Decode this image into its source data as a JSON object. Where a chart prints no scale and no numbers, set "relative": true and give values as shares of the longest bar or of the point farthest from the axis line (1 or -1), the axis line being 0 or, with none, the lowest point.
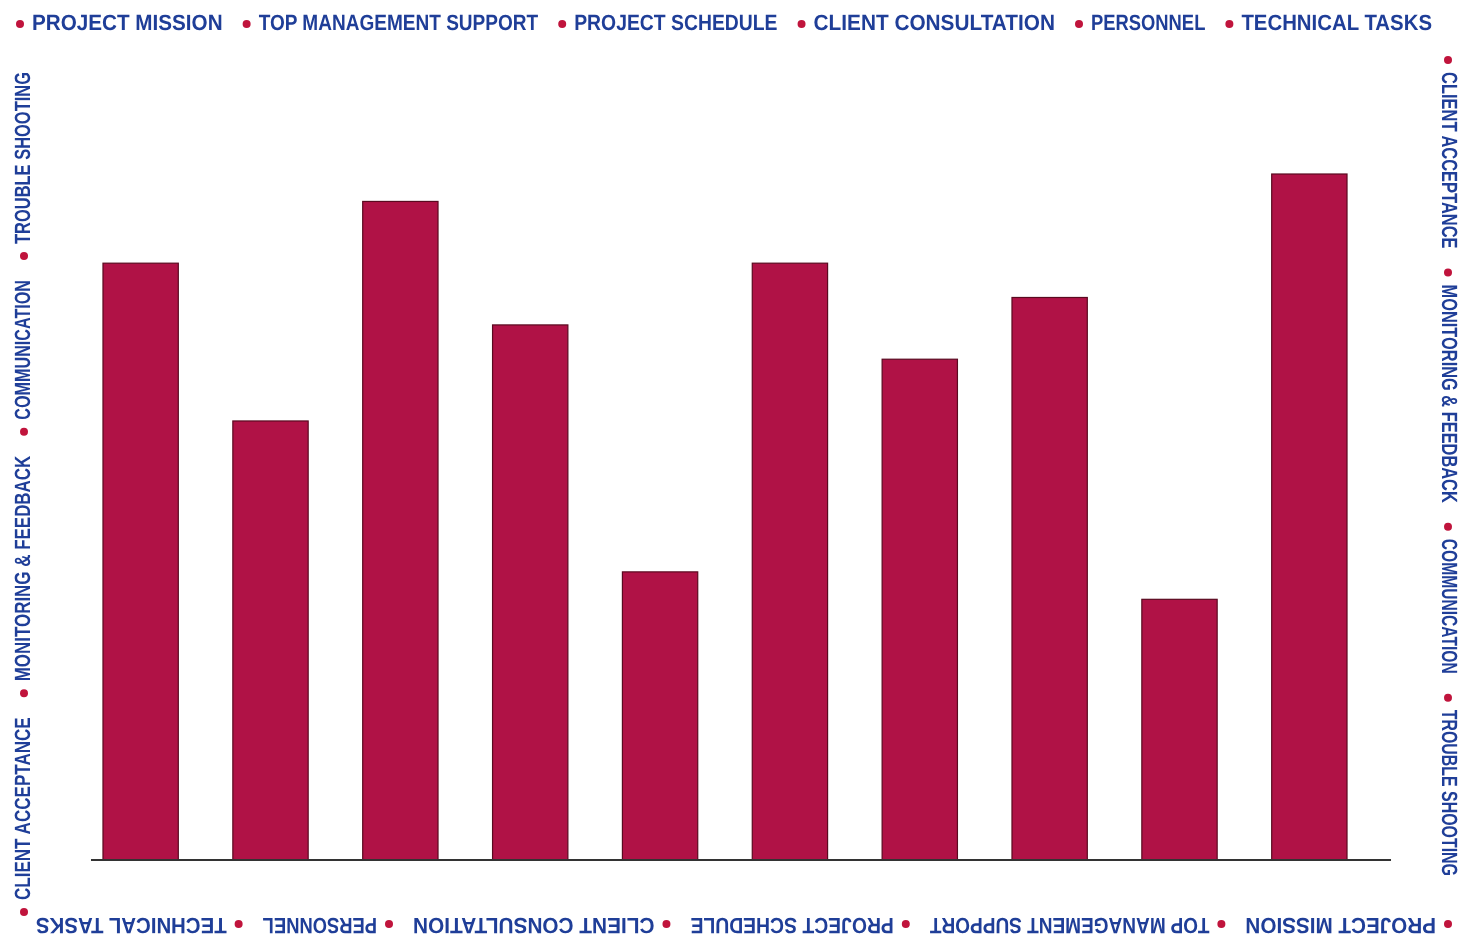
{
  "chart_data": {
    "type": "bar",
    "relative": true,
    "categories": [
      null,
      null,
      null,
      null,
      null,
      null,
      null,
      null,
      null,
      null
    ],
    "values": [
      0.87,
      0.64,
      0.96,
      0.78,
      0.42,
      0.87,
      0.73,
      0.82,
      0.38,
      1
    ],
    "color": "#b01246",
    "annotations": [
      "PROJECT MISSION",
      "TOP MANAGEMENT SUPPORT",
      "PROJECT SCHEDULE",
      "CLIENT CONSULTATION",
      "PERSONNEL",
      "TECHNICAL TASKS",
      "CLIENT ACCEPTANCE",
      "MONITORING & FEEDBACK",
      "COMMUNICATION",
      "TROUBLE SHOOTING"
    ]
  }
}
